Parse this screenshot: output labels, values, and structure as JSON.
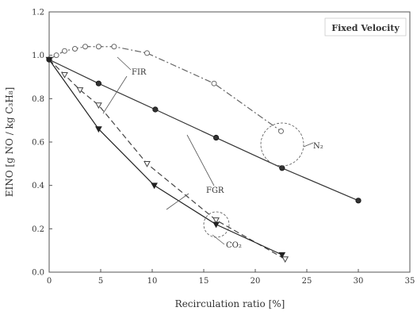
{
  "chart_data": {
    "type": "line",
    "title": "",
    "xlabel": "Recirculation ratio [%]",
    "ylabel": "EINO [g NO / kg C₃H₈]",
    "xlim": [
      0,
      35
    ],
    "ylim": [
      0,
      1.2
    ],
    "xticks": [
      0,
      5,
      10,
      15,
      20,
      25,
      30,
      35
    ],
    "yticks": [
      0.0,
      0.2,
      0.4,
      0.6,
      0.8,
      1.0,
      1.2
    ],
    "xtick_labels": [
      "0",
      "5",
      "10",
      "15",
      "20",
      "25",
      "30",
      "35"
    ],
    "ytick_labels": [
      "0.0",
      "0.2",
      "0.4",
      "0.6",
      "0.8",
      "1.0",
      "1.2"
    ],
    "grid": false,
    "box_label": "Fixed Velocity",
    "annotations": {
      "fir": "FIR",
      "fgr": "FGR",
      "n2": "N₂",
      "co2": "CO₂"
    },
    "series": [
      {
        "color": "#666666",
        "marker": "open-circle",
        "line": "dash-dot",
        "x": [
          0,
          0.7,
          1.5,
          2.5,
          3.5,
          4.8,
          6.3,
          9.5,
          16,
          22.5
        ],
        "y": [
          0.98,
          1.0,
          1.02,
          1.03,
          1.04,
          1.04,
          1.04,
          1.01,
          0.87,
          0.65
        ]
      },
      {
        "color": "#333333",
        "marker": "filled-circle",
        "line": "solid",
        "x": [
          0,
          4.8,
          10.3,
          16.2,
          22.6,
          30
        ],
        "y": [
          0.98,
          0.87,
          0.75,
          0.62,
          0.48,
          0.33
        ]
      },
      {
        "color": "#444444",
        "marker": "open-triangle",
        "line": "dashed",
        "x": [
          0,
          1.5,
          3.0,
          4.8,
          9.5,
          16.2,
          22.9
        ],
        "y": [
          0.98,
          0.91,
          0.84,
          0.77,
          0.5,
          0.24,
          0.06
        ]
      },
      {
        "color": "#222222",
        "marker": "filled-triangle",
        "line": "solid",
        "x": [
          0,
          4.8,
          10.2,
          16.2,
          22.6
        ],
        "y": [
          0.98,
          0.66,
          0.4,
          0.22,
          0.08
        ]
      }
    ]
  }
}
